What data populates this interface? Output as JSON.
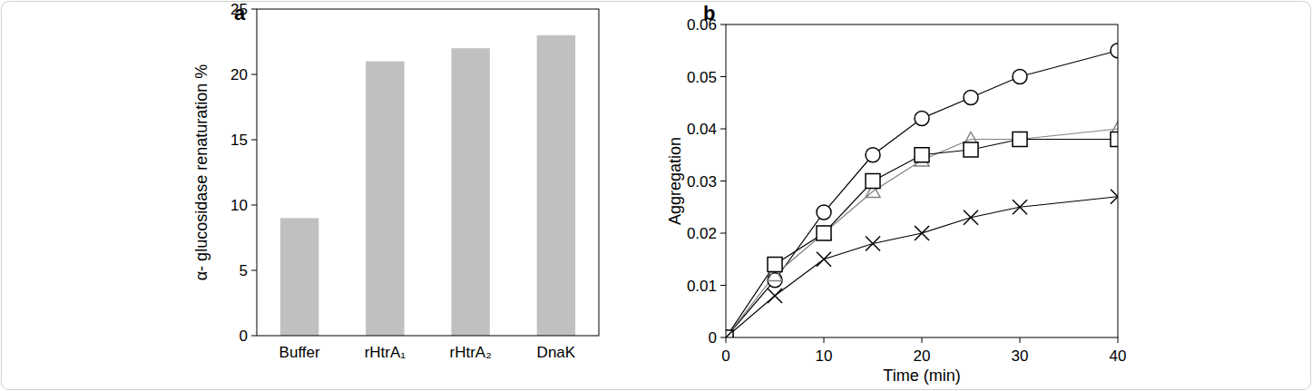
{
  "chart_data": [
    {
      "type": "bar",
      "title": "a",
      "categories": [
        "Buffer",
        "rHtrA₁",
        "rHtrA₂",
        "DnaK"
      ],
      "values": [
        9,
        21,
        22,
        23
      ],
      "color": "#c0c0c0",
      "y_label": "α- glucosidase renaturation %",
      "ylim": [
        0,
        25
      ],
      "yticks": [
        0,
        5,
        10,
        15,
        20,
        25
      ],
      "grid": false
    },
    {
      "type": "line",
      "title": "b",
      "x": [
        0,
        5,
        10,
        15,
        20,
        25,
        30,
        40
      ],
      "x_label": "Time (min)",
      "y_label": "Aggregation",
      "xlim": [
        0,
        40
      ],
      "xticks": [
        0,
        10,
        20,
        30,
        40
      ],
      "ylim": [
        0,
        0.06
      ],
      "yticks": [
        0,
        0.01,
        0.02,
        0.03,
        0.04,
        0.05,
        0.06
      ],
      "grid": false,
      "series": [
        {
          "color": "#000000",
          "marker": "circle",
          "values": [
            0,
            0.011,
            0.024,
            0.035,
            0.042,
            0.046,
            0.05,
            0.055
          ]
        },
        {
          "color": "#808080",
          "marker": "triangle",
          "values": [
            0,
            0.012,
            0.02,
            0.028,
            0.034,
            0.038,
            0.038,
            0.04
          ]
        },
        {
          "color": "#000000",
          "marker": "square",
          "values": [
            0,
            0.014,
            0.02,
            0.03,
            0.035,
            0.036,
            0.038,
            0.038
          ]
        },
        {
          "color": "#000000",
          "marker": "x",
          "values": [
            0,
            0.008,
            0.015,
            0.018,
            0.02,
            0.023,
            0.025,
            0.027
          ]
        }
      ]
    }
  ]
}
